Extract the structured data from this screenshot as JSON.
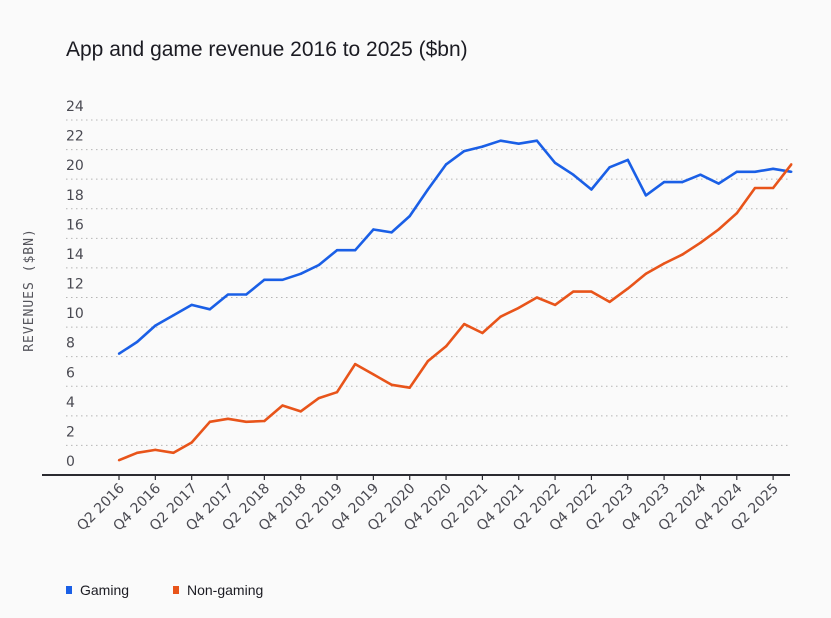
{
  "chart_data": {
    "type": "line",
    "title": "App and game revenue 2016 to 2025 ($bn)",
    "xlabel": "",
    "ylabel": "REVENUES ($BN)",
    "ylim": [
      0,
      24
    ],
    "yticks": [
      0,
      2,
      4,
      6,
      8,
      10,
      12,
      14,
      16,
      18,
      20,
      22,
      24
    ],
    "grid": true,
    "legend_position": "bottom-left",
    "x": [
      "Q2 2016",
      "Q3 2016",
      "Q4 2016",
      "Q1 2017",
      "Q2 2017",
      "Q3 2017",
      "Q4 2017",
      "Q1 2018",
      "Q2 2018",
      "Q3 2018",
      "Q4 2018",
      "Q1 2019",
      "Q2 2019",
      "Q3 2019",
      "Q4 2019",
      "Q1 2020",
      "Q2 2020",
      "Q3 2020",
      "Q4 2020",
      "Q1 2021",
      "Q2 2021",
      "Q3 2021",
      "Q4 2021",
      "Q1 2022",
      "Q2 2022",
      "Q3 2022",
      "Q4 2022",
      "Q1 2023",
      "Q2 2023",
      "Q3 2023",
      "Q4 2023",
      "Q1 2024",
      "Q2 2024",
      "Q3 2024",
      "Q4 2024",
      "Q1 2025",
      "Q2 2025",
      "Q3 2025"
    ],
    "xtick_labels": [
      "Q2 2016",
      "Q4 2016",
      "Q2 2017",
      "Q4 2017",
      "Q2 2018",
      "Q4 2018",
      "Q2 2019",
      "Q4 2019",
      "Q2 2020",
      "Q4 2020",
      "Q2 2021",
      "Q4 2021",
      "Q2 2022",
      "Q4 2022",
      "Q2 2023",
      "Q4 2023",
      "Q2 2024",
      "Q4 2024",
      "Q2 2025"
    ],
    "series": [
      {
        "name": "Gaming",
        "color": "#1a5fe6",
        "values": [
          8.2,
          9.0,
          10.1,
          10.8,
          11.5,
          11.2,
          12.2,
          12.2,
          13.2,
          13.2,
          13.6,
          14.2,
          15.2,
          15.2,
          16.6,
          16.4,
          17.5,
          19.3,
          21.0,
          21.9,
          22.2,
          22.6,
          22.4,
          22.6,
          21.1,
          20.3,
          19.3,
          20.8,
          21.3,
          18.9,
          19.8,
          19.8,
          20.3,
          19.7,
          20.5,
          20.5,
          20.7,
          20.5
        ]
      },
      {
        "name": "Non-gaming",
        "color": "#e8541a",
        "values": [
          1.0,
          1.5,
          1.7,
          1.5,
          2.2,
          3.6,
          3.8,
          3.6,
          3.65,
          4.7,
          4.3,
          5.2,
          5.6,
          7.5,
          6.8,
          6.1,
          5.9,
          7.7,
          8.7,
          10.2,
          9.6,
          10.7,
          11.3,
          12.0,
          11.5,
          12.4,
          12.4,
          11.7,
          12.6,
          13.6,
          14.3,
          14.9,
          15.7,
          16.6,
          17.7,
          19.4,
          19.4,
          21.0
        ]
      }
    ]
  }
}
